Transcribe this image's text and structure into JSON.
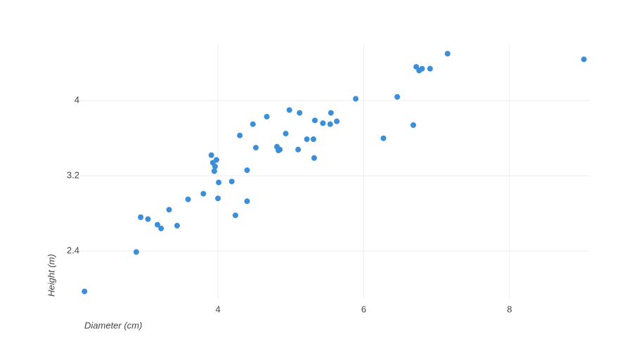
{
  "chart_data": {
    "type": "scatter",
    "x_label": "Diameter (cm)",
    "y_label": "Height (m)",
    "color": "#3b8ed8",
    "xlim": [
      2.1,
      9.1
    ],
    "ylim": [
      1.9,
      4.6
    ],
    "xticks": [
      4,
      6,
      8
    ],
    "yticks": [
      2.4,
      3.2,
      4
    ],
    "grid": true,
    "x": [
      2.17,
      2.88,
      2.94,
      3.04,
      3.17,
      3.22,
      3.33,
      3.44,
      3.59,
      3.8,
      4.0,
      4.01,
      4.19,
      4.24,
      4.4,
      4.4,
      3.91,
      3.98,
      3.93,
      3.96,
      3.95,
      4.3,
      4.48,
      4.52,
      4.67,
      4.81,
      4.83,
      4.85,
      4.93,
      4.98,
      5.1,
      5.12,
      5.22,
      5.31,
      5.32,
      5.33,
      5.44,
      5.54,
      5.55,
      5.63,
      5.89,
      6.27,
      6.46,
      6.68,
      6.72,
      6.76,
      6.8,
      6.91,
      7.15,
      9.02
    ],
    "y": [
      1.97,
      2.39,
      2.76,
      2.74,
      2.68,
      2.64,
      2.84,
      2.67,
      2.95,
      3.01,
      2.96,
      3.13,
      3.14,
      2.78,
      2.93,
      3.26,
      3.42,
      3.37,
      3.34,
      3.3,
      3.25,
      3.63,
      3.75,
      3.5,
      3.83,
      3.51,
      3.47,
      3.48,
      3.65,
      3.9,
      3.48,
      3.87,
      3.59,
      3.59,
      3.39,
      3.79,
      3.76,
      3.75,
      3.87,
      3.78,
      4.02,
      3.6,
      4.04,
      3.74,
      4.36,
      4.32,
      4.34,
      4.34,
      4.5,
      4.44
    ]
  }
}
